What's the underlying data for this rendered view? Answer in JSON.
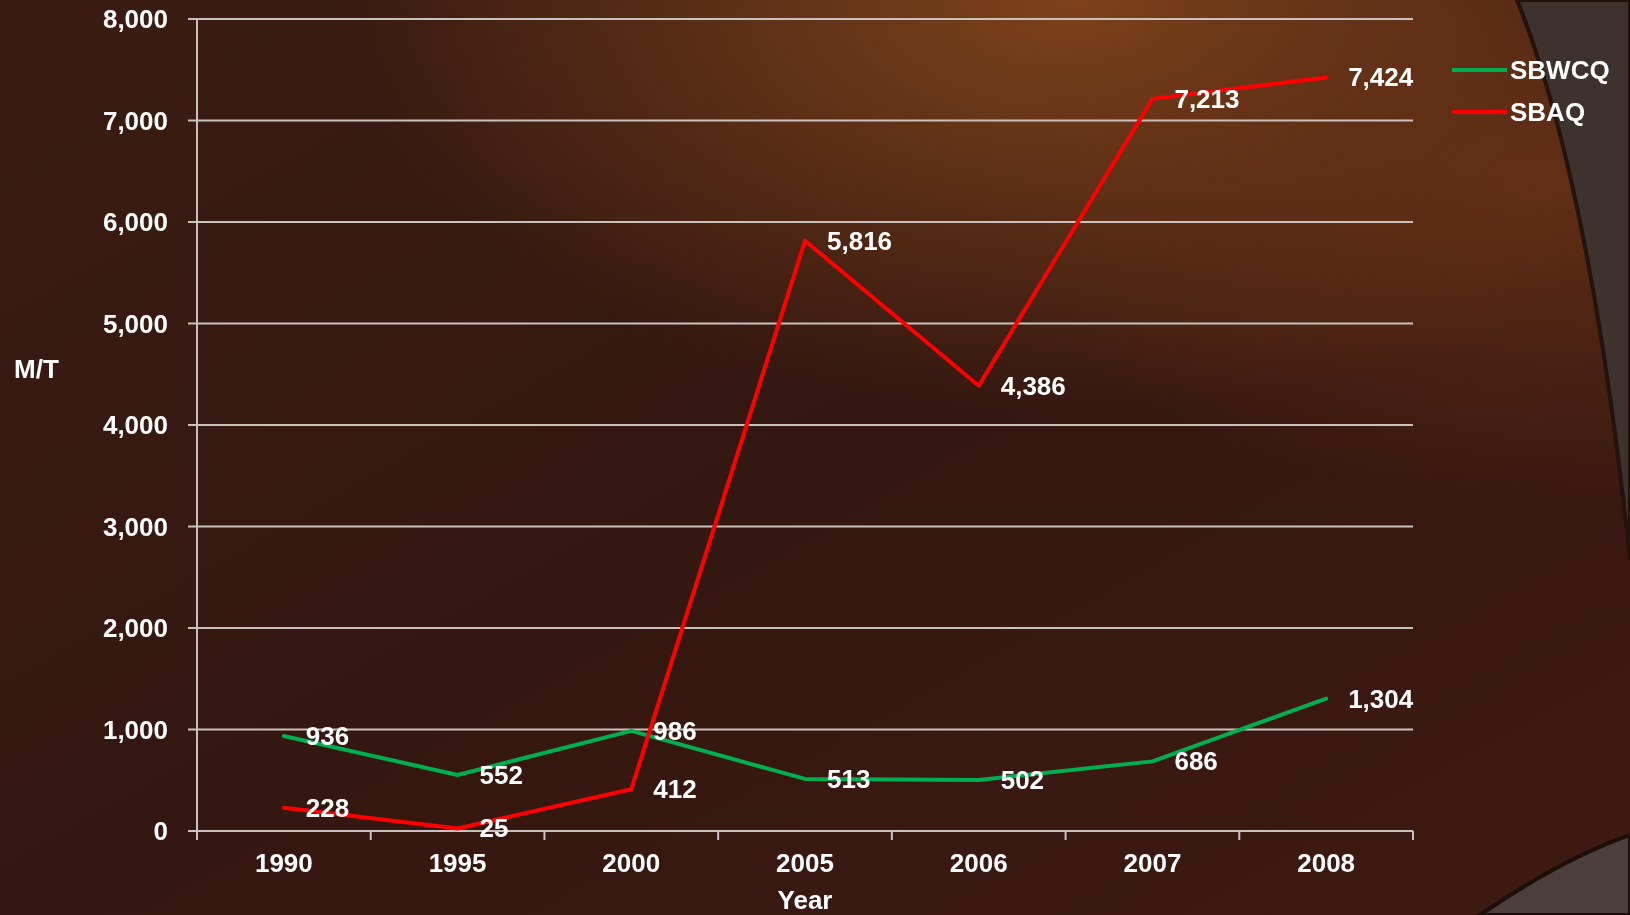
{
  "chart_data": {
    "type": "line",
    "xlabel": "Year",
    "ylabel": "M/T",
    "categories": [
      "1990",
      "1995",
      "2000",
      "2005",
      "2006",
      "2007",
      "2008"
    ],
    "series": [
      {
        "name": "SBWCQ",
        "color": "#00b050",
        "values": [
          936,
          552,
          986,
          513,
          502,
          686,
          1304
        ],
        "value_labels": [
          "936",
          "552",
          "986",
          "513",
          "502",
          "686",
          "1,304"
        ]
      },
      {
        "name": "SBAQ",
        "color": "#ff0000",
        "values": [
          228,
          25,
          412,
          5816,
          4386,
          7213,
          7424
        ],
        "value_labels": [
          "228",
          "25",
          "412",
          "5,816",
          "4,386",
          "7,213",
          "7,424"
        ]
      }
    ],
    "ylim": [
      0,
      8000
    ],
    "yticks": [
      0,
      {
        "value": 1000,
        "label": "1,000"
      },
      {
        "value": 2000,
        "label": "2,000"
      },
      {
        "value": 3000,
        "label": "3,000"
      },
      {
        "value": 4000,
        "label": "4,000"
      },
      {
        "value": 5000,
        "label": "5,000"
      },
      {
        "value": 6000,
        "label": "6,000"
      },
      {
        "value": 7000,
        "label": "7,000"
      },
      {
        "value": 8000,
        "label": "8,000"
      }
    ],
    "grid": "y",
    "legend": "top right"
  }
}
